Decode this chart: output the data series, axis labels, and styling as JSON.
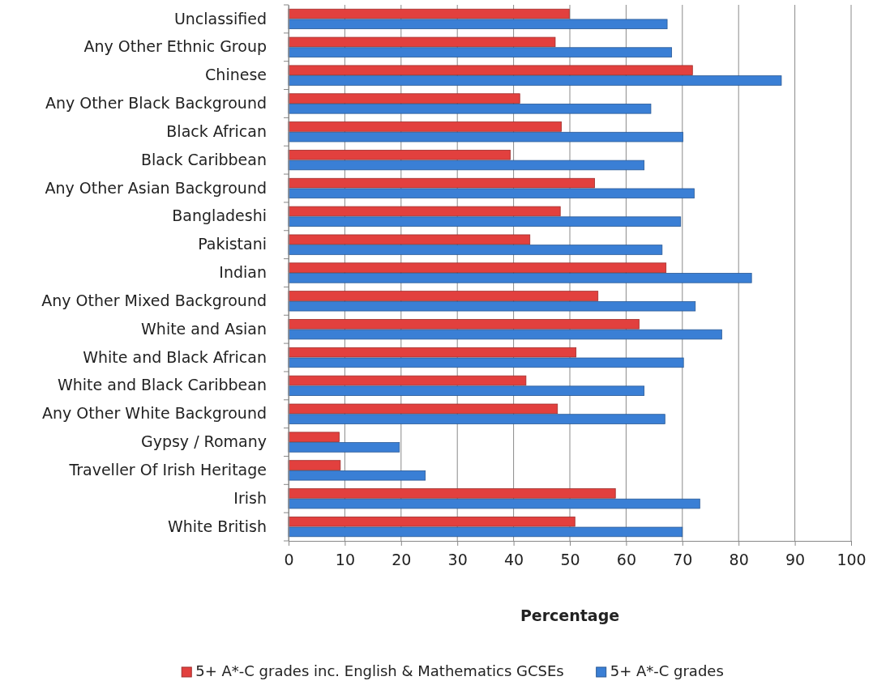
{
  "chart_data": {
    "type": "bar",
    "orientation": "horizontal",
    "xlabel": "Percentage",
    "categories": [
      "Unclassified",
      "Any Other Ethnic Group",
      "Chinese",
      "Any Other Black Background",
      "Black African",
      "Black Caribbean",
      "Any Other Asian Background",
      "Bangladeshi",
      "Pakistani",
      "Indian",
      "Any Other Mixed Background",
      "White and Asian",
      "White and Black African",
      "White and Black Caribbean",
      "Any Other White Background",
      "Gypsy / Romany",
      "Traveller Of Irish Heritage",
      "Irish",
      "White British"
    ],
    "series": [
      {
        "name": "5+ A*-C grades inc. English & Mathematics GCSEs",
        "color": "#e2403e",
        "values": [
          49.9,
          47.4,
          71.8,
          41.1,
          48.5,
          39.4,
          54.4,
          48.3,
          42.9,
          67.1,
          55.0,
          62.3,
          51.1,
          42.2,
          47.8,
          9.0,
          9.2,
          58.1,
          50.9
        ]
      },
      {
        "name": "5+ A*-C grades",
        "color": "#3a7fd5",
        "values": [
          67.3,
          68.1,
          87.6,
          64.4,
          70.1,
          63.2,
          72.1,
          69.7,
          66.4,
          82.3,
          72.3,
          77.0,
          70.2,
          63.2,
          66.9,
          19.7,
          24.3,
          73.1,
          70.0
        ]
      }
    ],
    "xlim": [
      0,
      100
    ],
    "xticks": [
      0,
      10,
      20,
      30,
      40,
      50,
      60,
      70,
      80,
      90,
      100
    ],
    "grid": "x",
    "legend": "bottom"
  }
}
